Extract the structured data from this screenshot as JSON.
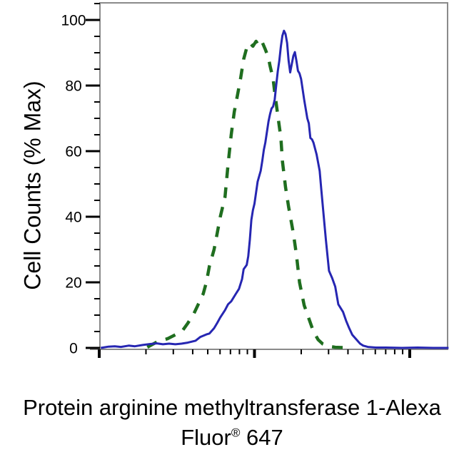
{
  "figure": {
    "caption_line1": "Protein arginine methyltransferase 1-Alexa",
    "caption_line2_pre": "Fluor",
    "caption_line2_sup": "®",
    "caption_line2_post": " 647"
  },
  "colors": {
    "axis": "#8a8a8a",
    "tick": "#000000",
    "text": "#000000",
    "background": "#ffffff",
    "green_dashed": "#1f6e1f",
    "blue_solid": "#2626b2"
  },
  "chart_data": {
    "type": "line",
    "subtype": "flow-cytometry-histogram-overlay",
    "title": "",
    "xlabel": "Protein arginine methyltransferase 1-Alexa Fluor® 647",
    "ylabel": "Cell Counts (% Max)",
    "grid": false,
    "legend": "none",
    "y_axis": {
      "ticks": [
        0,
        20,
        40,
        60,
        80,
        100
      ],
      "minor_tick_step": 5,
      "range": [
        0,
        105
      ]
    },
    "x_axis": {
      "scale": "log10",
      "tick_labels": "none",
      "major_decades": [
        0,
        1,
        2
      ],
      "minor_ticks_per_decade": [
        2,
        3,
        4,
        5,
        6,
        7,
        8,
        9
      ],
      "range_decades": [
        -0.06,
        2.25
      ]
    },
    "series": [
      {
        "name": "green-dashed-control",
        "line_style": "dashed",
        "color": "#1f6e1f",
        "points_log_pct": [
          [
            0.31,
            0.2
          ],
          [
            0.34,
            1
          ],
          [
            0.38,
            2
          ],
          [
            0.44,
            2.8
          ],
          [
            0.49,
            4
          ],
          [
            0.54,
            5.5
          ],
          [
            0.57,
            7.5
          ],
          [
            0.61,
            10.5
          ],
          [
            0.64,
            13.5
          ],
          [
            0.67,
            16.5
          ],
          [
            0.69,
            20
          ],
          [
            0.71,
            25
          ],
          [
            0.74,
            30
          ],
          [
            0.76,
            35
          ],
          [
            0.78,
            40
          ],
          [
            0.81,
            46
          ],
          [
            0.83,
            56
          ],
          [
            0.85,
            65
          ],
          [
            0.87,
            72
          ],
          [
            0.89,
            77
          ],
          [
            0.91,
            82
          ],
          [
            0.93,
            88
          ],
          [
            0.95,
            91.5
          ],
          [
            0.97,
            93
          ],
          [
            0.99,
            92
          ],
          [
            1.01,
            93.5
          ],
          [
            1.03,
            92
          ],
          [
            1.05,
            93.2
          ],
          [
            1.07,
            91
          ],
          [
            1.09,
            88.5
          ],
          [
            1.1,
            86
          ],
          [
            1.12,
            82
          ],
          [
            1.13,
            78
          ],
          [
            1.15,
            71
          ],
          [
            1.17,
            64
          ],
          [
            1.18,
            57
          ],
          [
            1.2,
            49
          ],
          [
            1.22,
            43
          ],
          [
            1.25,
            35
          ],
          [
            1.27,
            28.5
          ],
          [
            1.29,
            20
          ],
          [
            1.32,
            13
          ],
          [
            1.35,
            9
          ],
          [
            1.38,
            5
          ],
          [
            1.41,
            2.5
          ],
          [
            1.44,
            1.2
          ],
          [
            1.48,
            0.5
          ],
          [
            1.52,
            0.2
          ],
          [
            1.57,
            0.1
          ]
        ]
      },
      {
        "name": "blue-solid-stained",
        "line_style": "solid",
        "color": "#2626b2",
        "points_log_pct": [
          [
            0.01,
            0
          ],
          [
            0.06,
            0.4
          ],
          [
            0.1,
            0.5
          ],
          [
            0.14,
            0.3
          ],
          [
            0.19,
            0.7
          ],
          [
            0.23,
            0.5
          ],
          [
            0.28,
            0.9
          ],
          [
            0.33,
            1.2
          ],
          [
            0.37,
            1.4
          ],
          [
            0.41,
            1.1
          ],
          [
            0.45,
            1.3
          ],
          [
            0.49,
            1.1
          ],
          [
            0.53,
            1.3
          ],
          [
            0.57,
            1.6
          ],
          [
            0.62,
            2.2
          ],
          [
            0.65,
            3.3
          ],
          [
            0.69,
            4.1
          ],
          [
            0.71,
            4.4
          ],
          [
            0.74,
            6
          ],
          [
            0.76,
            7.6
          ],
          [
            0.78,
            9.3
          ],
          [
            0.81,
            11.5
          ],
          [
            0.83,
            13.3
          ],
          [
            0.85,
            14.2
          ],
          [
            0.88,
            16.5
          ],
          [
            0.9,
            18
          ],
          [
            0.92,
            21
          ],
          [
            0.93,
            24
          ],
          [
            0.95,
            25.3
          ],
          [
            0.96,
            28
          ],
          [
            0.97,
            33
          ],
          [
            0.98,
            39
          ],
          [
            0.99,
            42
          ],
          [
            1.0,
            44
          ],
          [
            1.02,
            50.7
          ],
          [
            1.04,
            54
          ],
          [
            1.05,
            57
          ],
          [
            1.06,
            60.4
          ],
          [
            1.07,
            62.6
          ],
          [
            1.09,
            69
          ],
          [
            1.1,
            71.3
          ],
          [
            1.11,
            73
          ],
          [
            1.12,
            73.6
          ],
          [
            1.13,
            75.7
          ],
          [
            1.14,
            80
          ],
          [
            1.15,
            84.3
          ],
          [
            1.16,
            87.6
          ],
          [
            1.17,
            92
          ],
          [
            1.18,
            95.2
          ],
          [
            1.19,
            96.7
          ],
          [
            1.2,
            95.7
          ],
          [
            1.21,
            93
          ],
          [
            1.22,
            87.6
          ],
          [
            1.23,
            84
          ],
          [
            1.24,
            86.5
          ],
          [
            1.25,
            89
          ],
          [
            1.26,
            90.2
          ],
          [
            1.27,
            87.6
          ],
          [
            1.28,
            84.5
          ],
          [
            1.29,
            83.7
          ],
          [
            1.3,
            82
          ],
          [
            1.32,
            75.7
          ],
          [
            1.34,
            70
          ],
          [
            1.35,
            68.5
          ],
          [
            1.36,
            64
          ],
          [
            1.37,
            63.6
          ],
          [
            1.38,
            62.6
          ],
          [
            1.4,
            59
          ],
          [
            1.42,
            54
          ],
          [
            1.43,
            48.5
          ],
          [
            1.45,
            38
          ],
          [
            1.46,
            32.8
          ],
          [
            1.48,
            23.5
          ],
          [
            1.5,
            21.3
          ],
          [
            1.52,
            18.7
          ],
          [
            1.54,
            13.3
          ],
          [
            1.57,
            11
          ],
          [
            1.59,
            8.3
          ],
          [
            1.61,
            6
          ],
          [
            1.63,
            4
          ],
          [
            1.66,
            2.4
          ],
          [
            1.68,
            1.3
          ],
          [
            1.7,
            0.7
          ],
          [
            1.73,
            0.3
          ],
          [
            1.78,
            0.1
          ],
          [
            1.85,
            0.1
          ],
          [
            1.95,
            0
          ],
          [
            2.05,
            0.1
          ],
          [
            2.15,
            0
          ],
          [
            2.25,
            0
          ]
        ]
      }
    ]
  }
}
